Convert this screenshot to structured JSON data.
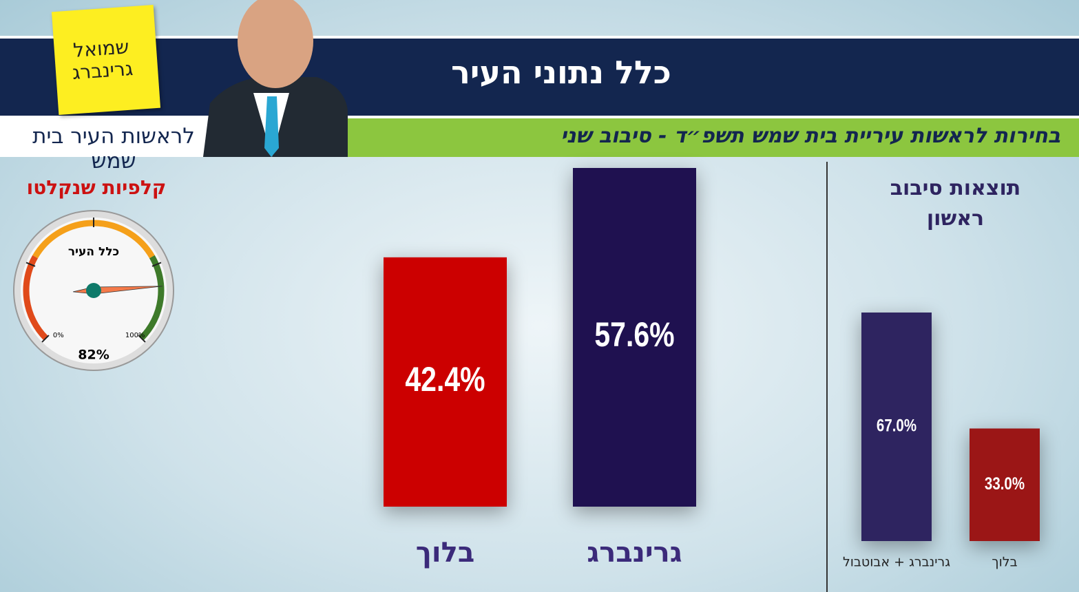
{
  "header": {
    "title": "כלל נתוני העיר",
    "subtitle": "בחירות לראשות עיריית בית שמש תשפ״ד - סיבוב שני",
    "candidate_name": "שמואל גרינברג",
    "slogan": "לראשות העיר בית שמש"
  },
  "chart_data": [
    {
      "type": "gauge",
      "title": "קלפיות שנקלטו",
      "label": "כלל העיר",
      "value": 82,
      "value_label": "82%",
      "ylim": [
        0,
        100
      ],
      "yticks": [
        {
          "value": 0,
          "label": "0%"
        },
        {
          "value": 100,
          "label": "100%"
        }
      ]
    },
    {
      "type": "bar",
      "categories": [
        "בלוך",
        "גרינברג"
      ],
      "values": [
        42.4,
        57.6
      ],
      "value_labels": [
        "42.4%",
        "57.6%"
      ],
      "colors": [
        "#cc0000",
        "#1f1150"
      ]
    },
    {
      "type": "bar",
      "title": "תוצאות סיבוב ראשון",
      "categories": [
        "גרינברג + אבוטבול",
        "בלוך"
      ],
      "values": [
        67.0,
        33.0
      ],
      "value_labels": [
        "67.0%",
        "33.0%"
      ],
      "colors": [
        "#2e2460",
        "#9b1616"
      ]
    }
  ]
}
